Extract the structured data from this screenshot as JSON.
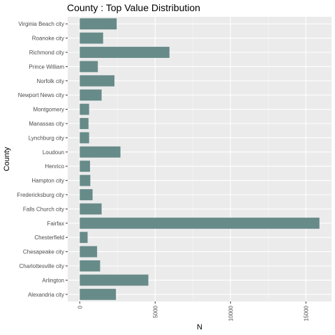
{
  "chart_data": {
    "type": "bar",
    "orientation": "horizontal",
    "title": "County : Top Value Distribution",
    "xlabel": "N",
    "ylabel": "County",
    "categories": [
      "Virginia Beach city",
      "Roanoke city",
      "Richmond city",
      "Prince William",
      "Norfolk city",
      "Newport News city",
      "Montgomery",
      "Manassas city",
      "Lynchburg city",
      "Loudoun",
      "Henrico",
      "Hampton city",
      "Fredericksburg city",
      "Falls Church city",
      "Fairfax",
      "Chesterfield",
      "Chesapeake city",
      "Charlottesville city",
      "Arlington",
      "Alexandria city"
    ],
    "values": [
      2450,
      1550,
      5950,
      1200,
      2300,
      1450,
      620,
      580,
      620,
      2700,
      680,
      700,
      850,
      1450,
      15900,
      520,
      1150,
      1350,
      4550,
      2400
    ],
    "xlim": [
      -800,
      16700
    ],
    "xticks": [
      0,
      5000,
      10000,
      15000
    ],
    "xtick_labels": [
      "0",
      "5000",
      "10000",
      "15000"
    ],
    "bar_color": "#678b89",
    "panel_background": "#ebebeb",
    "grid": true,
    "legend": "none"
  }
}
